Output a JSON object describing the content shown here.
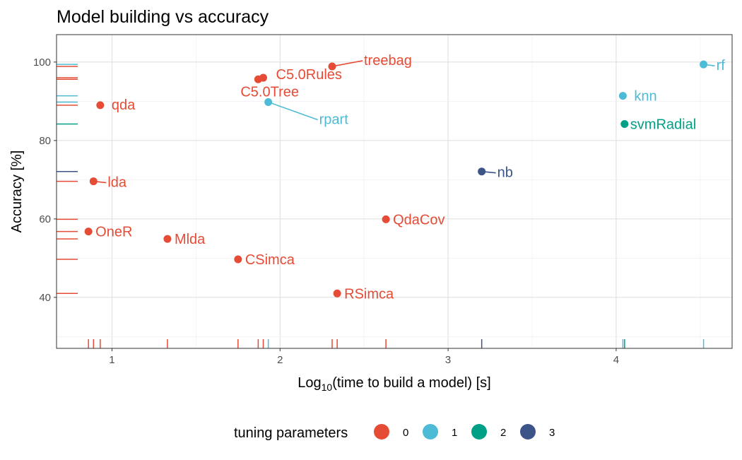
{
  "chart_data": {
    "type": "scatter",
    "title": "Model building vs accuracy",
    "xlabel_prefix": "Log",
    "xlabel_sub": "10",
    "xlabel_suffix": "(time to build a model) [s]",
    "ylabel": "Accuracy [%]",
    "xlim": [
      0.67,
      4.69
    ],
    "ylim": [
      27,
      107
    ],
    "x_ticks": [
      1,
      2,
      3,
      4
    ],
    "y_ticks": [
      40,
      60,
      80,
      100
    ],
    "grid": true,
    "rug": true,
    "legend": {
      "title": "tuning parameters",
      "position": "bottom",
      "entries": [
        {
          "label": "0",
          "color": "#E64B35"
        },
        {
          "label": "1",
          "color": "#4DBBD5"
        },
        {
          "label": "2",
          "color": "#00A087"
        },
        {
          "label": "3",
          "color": "#3C5488"
        }
      ]
    },
    "points": [
      {
        "label": "treebag",
        "x": 2.31,
        "y": 98.9,
        "group": 0
      },
      {
        "label": "C5.0Rules",
        "x": 1.9,
        "y": 96.0,
        "group": 0
      },
      {
        "label": "C5.0Tree",
        "x": 1.87,
        "y": 95.6,
        "group": 0
      },
      {
        "label": "rpart",
        "x": 1.93,
        "y": 89.8,
        "group": 1
      },
      {
        "label": "qda",
        "x": 0.93,
        "y": 89.0,
        "group": 0
      },
      {
        "label": "lda",
        "x": 0.89,
        "y": 69.6,
        "group": 0
      },
      {
        "label": "OneR",
        "x": 0.86,
        "y": 56.8,
        "group": 0
      },
      {
        "label": "Mlda",
        "x": 1.33,
        "y": 54.9,
        "group": 0
      },
      {
        "label": "CSimca",
        "x": 1.75,
        "y": 49.7,
        "group": 0
      },
      {
        "label": "RSimca",
        "x": 2.34,
        "y": 41.0,
        "group": 0
      },
      {
        "label": "QdaCov",
        "x": 2.63,
        "y": 59.9,
        "group": 0
      },
      {
        "label": "nb",
        "x": 3.2,
        "y": 72.1,
        "group": 3
      },
      {
        "label": "knn",
        "x": 4.04,
        "y": 91.4,
        "group": 1
      },
      {
        "label": "svmRadial",
        "x": 4.05,
        "y": 84.2,
        "group": 2
      },
      {
        "label": "rf",
        "x": 4.52,
        "y": 99.4,
        "group": 1
      }
    ]
  }
}
